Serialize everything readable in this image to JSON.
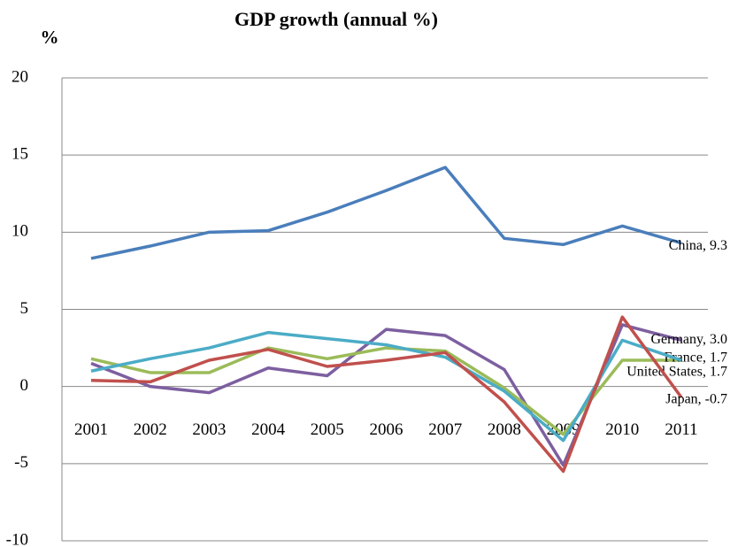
{
  "chart_data": {
    "type": "line",
    "title": "GDP growth (annual %)",
    "y_label": "%",
    "categories": [
      "2001",
      "2002",
      "2003",
      "2004",
      "2005",
      "2006",
      "2007",
      "2008",
      "2009",
      "2010",
      "2011"
    ],
    "series": [
      {
        "name": "China",
        "color": "#4a7ebb",
        "values": [
          8.3,
          9.1,
          10.0,
          10.1,
          11.3,
          12.7,
          14.2,
          9.6,
          9.2,
          10.4,
          9.3
        ],
        "end_label": "China, 9.3"
      },
      {
        "name": "Germany",
        "color": "#7d5fa0",
        "values": [
          1.5,
          0.0,
          -0.4,
          1.2,
          0.7,
          3.7,
          3.3,
          1.1,
          -5.1,
          4.0,
          3.0
        ],
        "end_label": "Germany, 3.0"
      },
      {
        "name": "France",
        "color": "#9bbb59",
        "values": [
          1.8,
          0.9,
          0.9,
          2.5,
          1.8,
          2.5,
          2.3,
          -0.1,
          -3.1,
          1.7,
          1.7
        ],
        "end_label": "France, 1.7"
      },
      {
        "name": "United States",
        "color": "#4bacc6",
        "values": [
          1.0,
          1.8,
          2.5,
          3.5,
          3.1,
          2.7,
          1.9,
          -0.3,
          -3.5,
          3.0,
          1.7
        ],
        "end_label": "United States, 1.7"
      },
      {
        "name": "Japan",
        "color": "#c0504d",
        "values": [
          0.4,
          0.3,
          1.7,
          2.4,
          1.3,
          1.7,
          2.2,
          -1.0,
          -5.5,
          4.5,
          -0.7
        ],
        "end_label": "Japan, -0.7"
      }
    ],
    "ylim": [
      -10,
      20
    ],
    "yticks": [
      -10,
      -5,
      0,
      5,
      10,
      15,
      20
    ],
    "grid": true
  }
}
